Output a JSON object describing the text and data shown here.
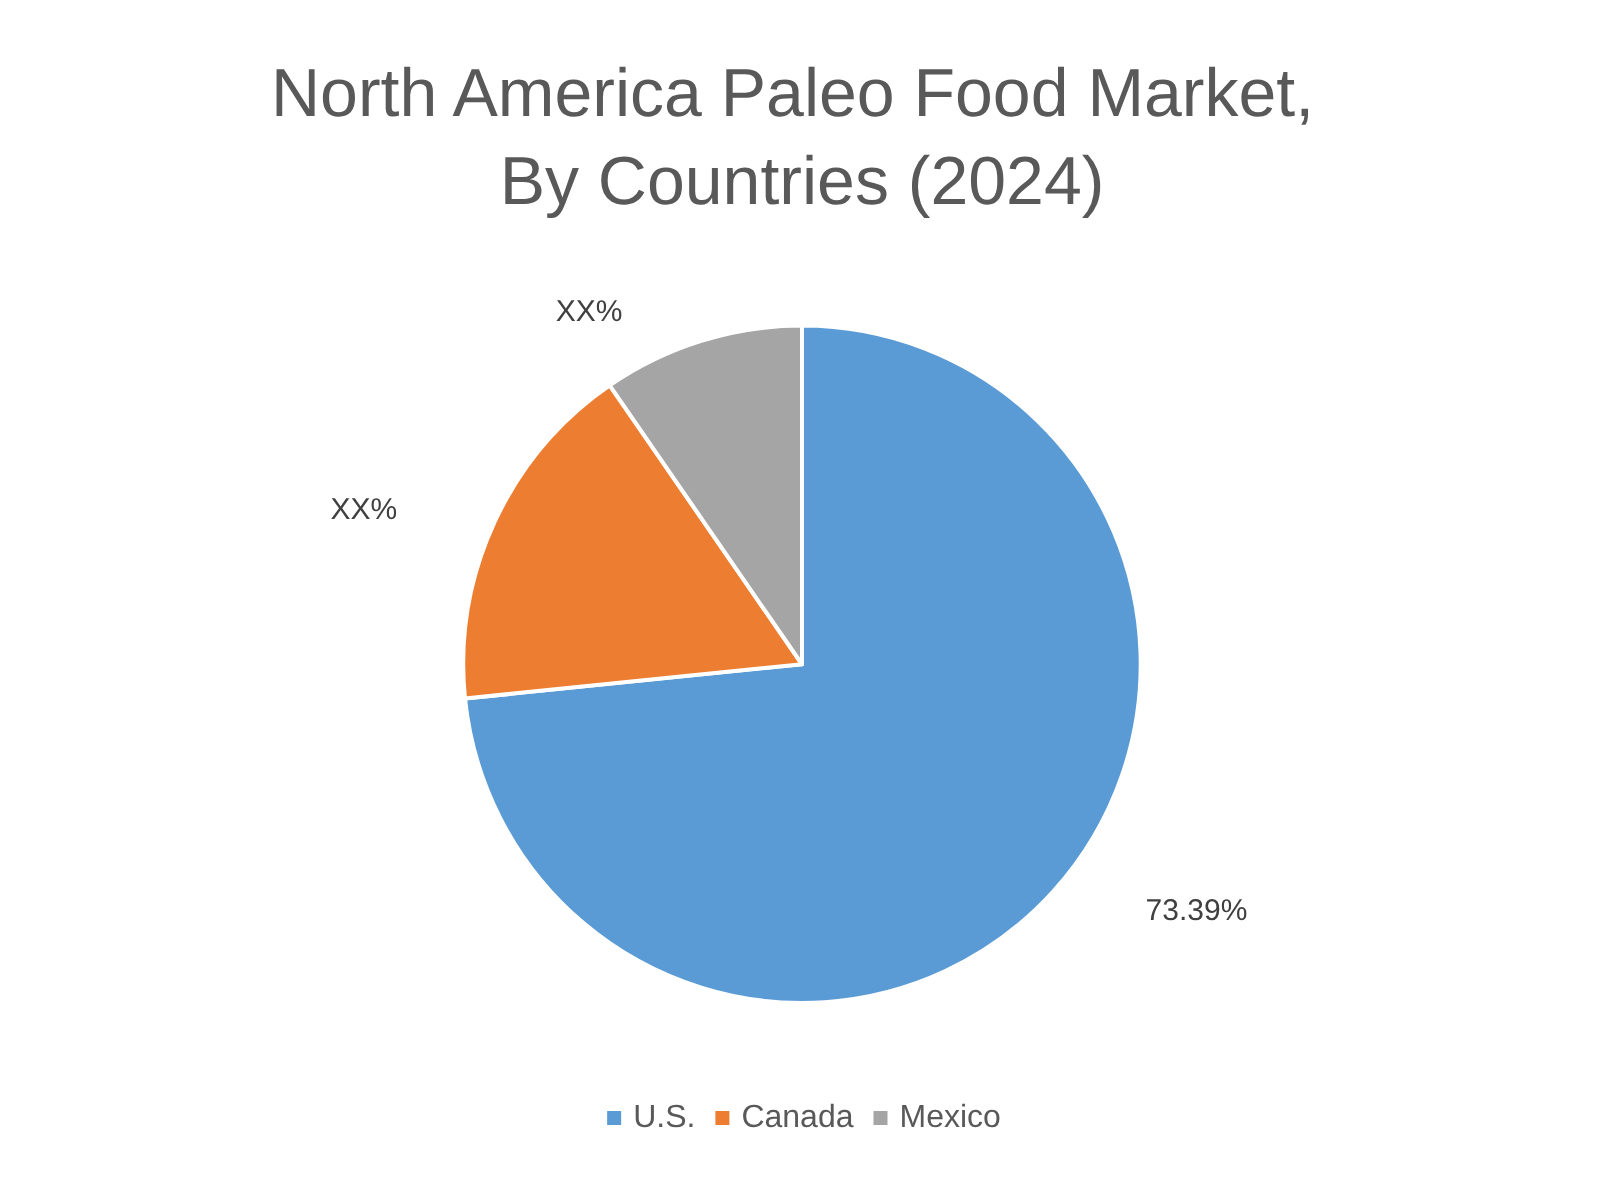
{
  "chart_data": {
    "type": "pie",
    "title": "North America Paleo Food Market, By Countries (2024)",
    "categories": [
      "U.S.",
      "Canada",
      "Mexico"
    ],
    "values": [
      73.39,
      17.0,
      9.61
    ],
    "colors": [
      "#5b9bd5",
      "#ed7d31",
      "#a5a5a5"
    ],
    "value_labels": [
      "73.39%",
      "XX%",
      "XX%"
    ],
    "legend": "bottom"
  }
}
